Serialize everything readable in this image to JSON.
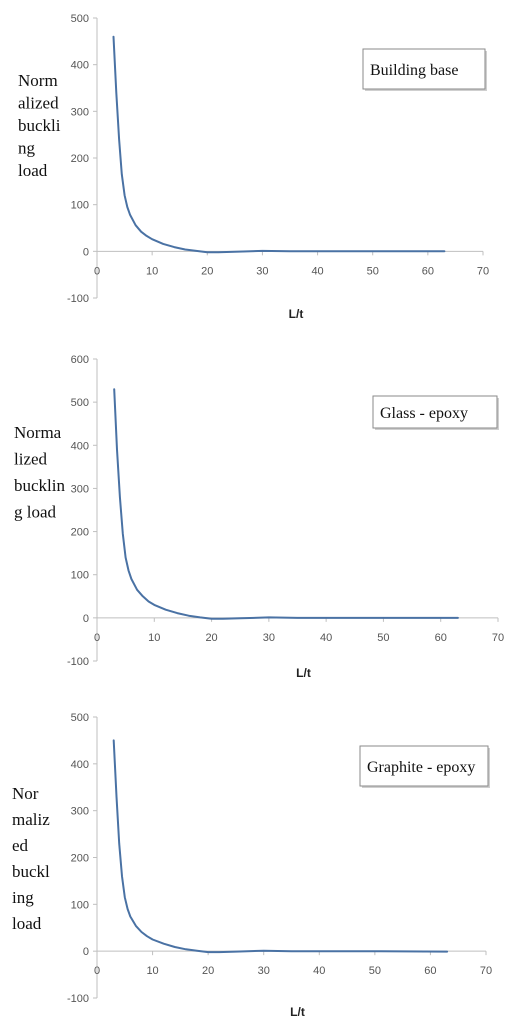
{
  "chart_data": [
    {
      "type": "line",
      "ylabel_lines": [
        "Norm",
        "alized",
        "buckli",
        "ng",
        "load"
      ],
      "xlabel": "L/t",
      "legend": "Building base",
      "xlim": [
        0,
        70
      ],
      "ylim": [
        -100,
        500
      ],
      "xticks": [
        0,
        10,
        20,
        30,
        40,
        50,
        60,
        70
      ],
      "yticks": [
        -100,
        0,
        100,
        200,
        300,
        400,
        500
      ],
      "color": "#4a72a4",
      "series": [
        {
          "x": [
            3,
            3.5,
            4,
            4.5,
            5,
            5.5,
            6,
            7,
            8,
            9,
            10,
            12,
            14,
            16,
            18,
            20,
            22,
            25,
            30,
            35,
            40,
            50,
            63
          ],
          "y": [
            460,
            340,
            240,
            165,
            120,
            95,
            78,
            56,
            42,
            33,
            26,
            16,
            9,
            4,
            1,
            -2,
            -2,
            -1,
            1,
            0,
            0,
            0,
            0
          ]
        }
      ]
    },
    {
      "type": "line",
      "ylabel_lines": [
        "Norma",
        "lized",
        "bucklin",
        "g load"
      ],
      "xlabel": "L/t",
      "legend": "Glass - epoxy",
      "xlim": [
        0,
        70
      ],
      "ylim": [
        -100,
        600
      ],
      "xticks": [
        0,
        10,
        20,
        30,
        40,
        50,
        60,
        70
      ],
      "yticks": [
        -100,
        0,
        100,
        200,
        300,
        400,
        500,
        600
      ],
      "color": "#4a72a4",
      "series": [
        {
          "x": [
            3,
            3.5,
            4,
            4.5,
            5,
            5.5,
            6,
            7,
            8,
            9,
            10,
            12,
            14,
            16,
            18,
            20,
            22,
            25,
            30,
            35,
            40,
            50,
            63
          ],
          "y": [
            530,
            390,
            280,
            195,
            140,
            110,
            90,
            65,
            50,
            38,
            30,
            19,
            11,
            5,
            1,
            -2,
            -2,
            -1,
            1,
            0,
            0,
            0,
            0
          ]
        }
      ]
    },
    {
      "type": "line",
      "ylabel_lines": [
        "Nor",
        "maliz",
        "ed",
        "buckl",
        "ing",
        "load"
      ],
      "xlabel": "L/t",
      "legend": "Graphite - epoxy",
      "xlim": [
        0,
        70
      ],
      "ylim": [
        -100,
        500
      ],
      "xticks": [
        0,
        10,
        20,
        30,
        40,
        50,
        60,
        70
      ],
      "yticks": [
        -100,
        0,
        100,
        200,
        300,
        400,
        500
      ],
      "color": "#4a72a4",
      "series": [
        {
          "x": [
            3,
            3.5,
            4,
            4.5,
            5,
            5.5,
            6,
            7,
            8,
            9,
            10,
            12,
            14,
            16,
            18,
            20,
            22,
            25,
            30,
            35,
            40,
            50,
            63
          ],
          "y": [
            450,
            330,
            230,
            160,
            115,
            90,
            74,
            54,
            41,
            32,
            25,
            16,
            9,
            4,
            1,
            -2,
            -2,
            -1,
            1,
            0,
            0,
            0,
            -1
          ]
        }
      ]
    }
  ]
}
